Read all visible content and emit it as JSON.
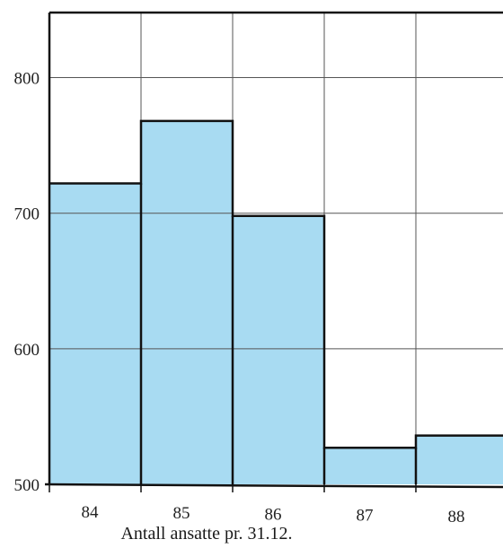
{
  "chart_data": {
    "type": "bar",
    "categories": [
      "84",
      "85",
      "86",
      "87",
      "88"
    ],
    "values": [
      722,
      768,
      698,
      527,
      536
    ],
    "xlabel": "Antall ansatte pr. 31.12.",
    "ylabel": "",
    "ylim": [
      500,
      848
    ],
    "yticks": [
      500,
      600,
      700,
      800
    ],
    "grid": true,
    "colors": {
      "bar": "#a8dbf2",
      "edge": "#111111",
      "grid": "#555555"
    }
  }
}
